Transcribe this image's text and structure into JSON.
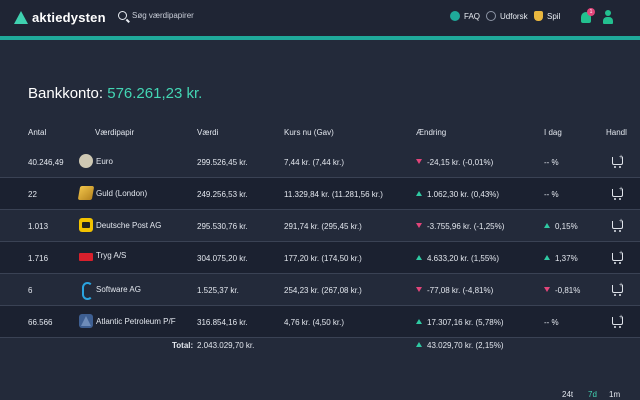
{
  "header": {
    "logo_text": "aktiedysten",
    "search_placeholder": "Søg værdipapirer",
    "nav": [
      {
        "label": "FAQ",
        "icon": "faq-icon"
      },
      {
        "label": "Udforsk",
        "icon": "compass-icon"
      },
      {
        "label": "Spil",
        "icon": "trophy-icon"
      }
    ],
    "notification_count": "1",
    "accent_color": "#1fa99a"
  },
  "account": {
    "label": "Bankkonto:",
    "value": "576.261,23 kr."
  },
  "table": {
    "headers": {
      "antal": "Antal",
      "vaerdipapir": "Værdipapir",
      "vaerdi": "Værdi",
      "kurs": "Kurs nu (Gav)",
      "aendring": "Ændring",
      "idag": "I dag",
      "handl": "Handl"
    },
    "rows": [
      {
        "antal": "40.246,49",
        "name": "Euro",
        "icon": "euro-coin-icon",
        "vaerdi": "299.526,45 kr.",
        "kurs": "7,44 kr. (7,44 kr.)",
        "aendring": "-24,15 kr. (-0,01%)",
        "aendring_dir": "down",
        "idag": "-- %",
        "idag_dir": "none"
      },
      {
        "antal": "22",
        "name": "Guld (London)",
        "icon": "gold-bar-icon",
        "vaerdi": "249.256,53 kr.",
        "kurs": "11.329,84 kr. (11.281,56 kr.)",
        "aendring": "1.062,30 kr. (0,43%)",
        "aendring_dir": "up",
        "idag": "-- %",
        "idag_dir": "none"
      },
      {
        "antal": "1.013",
        "name": "Deutsche Post AG",
        "icon": "deutsche-post-logo-icon",
        "vaerdi": "295.530,76 kr.",
        "kurs": "291,74 kr. (295,45 kr.)",
        "aendring": "-3.755,96 kr. (-1,25%)",
        "aendring_dir": "down",
        "idag": "0,15%",
        "idag_dir": "up"
      },
      {
        "antal": "1.716",
        "name": "Tryg A/S",
        "icon": "tryg-logo-icon",
        "vaerdi": "304.075,20 kr.",
        "kurs": "177,20 kr. (174,50 kr.)",
        "aendring": "4.633,20 kr. (1,55%)",
        "aendring_dir": "up",
        "idag": "1,37%",
        "idag_dir": "up"
      },
      {
        "antal": "6",
        "name": "Software AG",
        "icon": "software-ag-logo-icon",
        "vaerdi": "1.525,37 kr.",
        "kurs": "254,23 kr. (267,08 kr.)",
        "aendring": "-77,08 kr. (-4,81%)",
        "aendring_dir": "down",
        "idag": "-0,81%",
        "idag_dir": "down"
      },
      {
        "antal": "66.566",
        "name": "Atlantic Petroleum P/F",
        "icon": "atlantic-petroleum-logo-icon",
        "vaerdi": "316.854,16 kr.",
        "kurs": "4,76 kr. (4,50 kr.)",
        "aendring": "17.307,16 kr. (5,78%)",
        "aendring_dir": "up",
        "idag": "-- %",
        "idag_dir": "none"
      }
    ],
    "total_label": "Total:",
    "total_value": "2.043.029,70 kr.",
    "total_change": "43.029,70 kr. (2,15%)"
  },
  "periods": [
    "24t",
    "7d",
    "1m"
  ],
  "active_period": "7d"
}
